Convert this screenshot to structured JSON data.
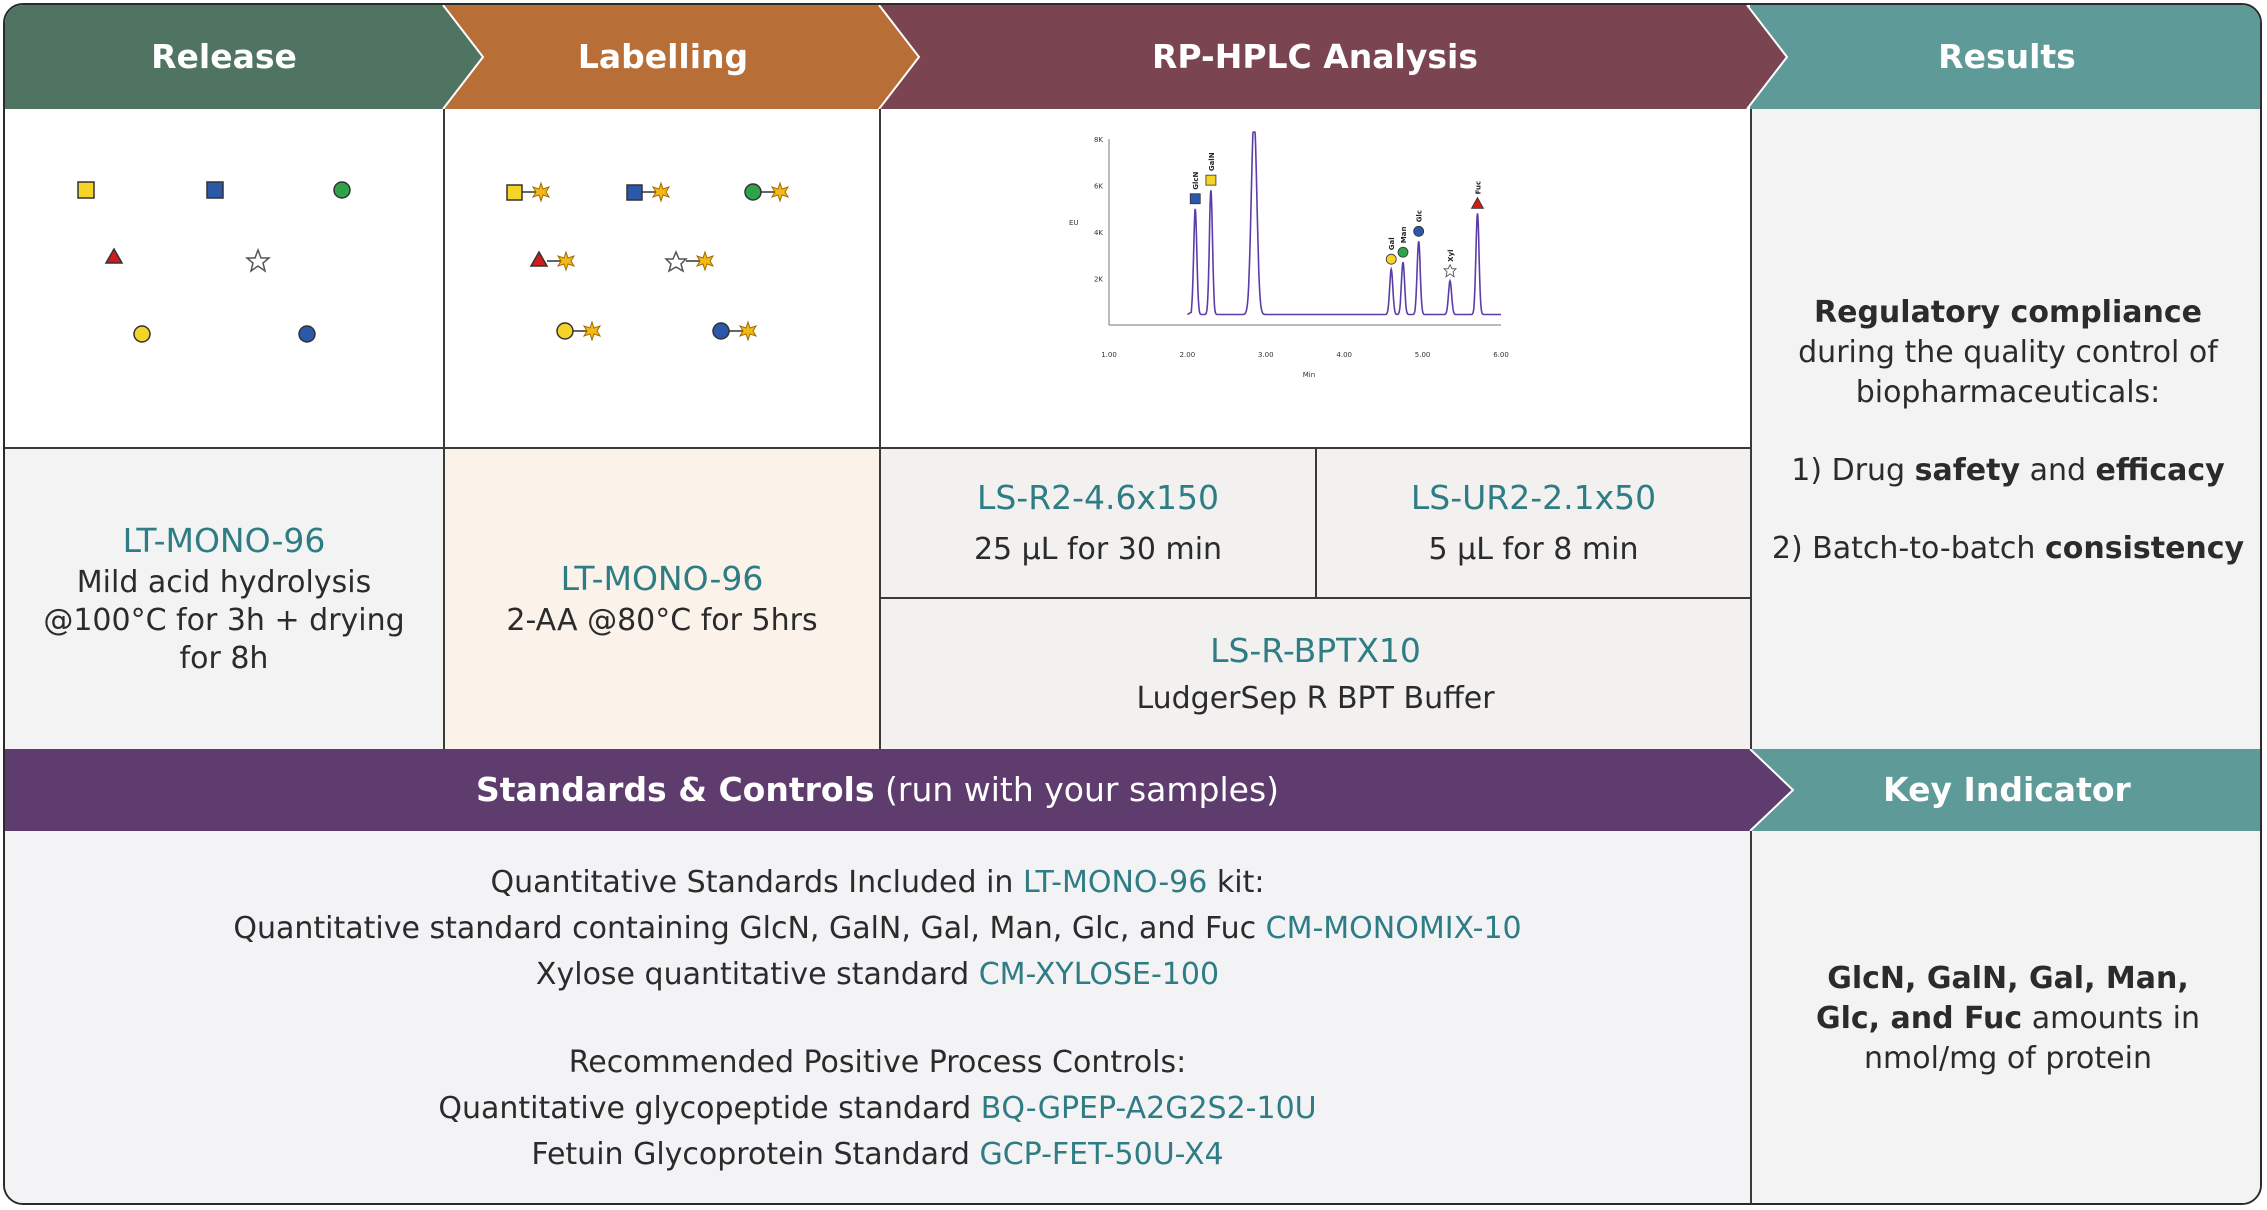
{
  "colors": {
    "release": "#4f7461",
    "labelling": "#b86e37",
    "analysis": "#7a4550",
    "results": "#5e9a98",
    "standards": "#5f3c6e",
    "teal_text": "#2e7d84"
  },
  "header": {
    "release": "Release",
    "labelling": "Labelling",
    "analysis": "RP-HPLC Analysis",
    "results": "Results"
  },
  "release_panel": {
    "code": "LT-MONO-96",
    "line1": "Mild acid hydrolysis",
    "line2": "@100°C for 3h + drying",
    "line3": "for 8h"
  },
  "labelling_panel": {
    "code": "LT-MONO-96",
    "line1": "2-AA @80°C for 5hrs"
  },
  "analysis_panel": {
    "col1_code": "LS-R2-4.6x150",
    "col1_desc": "25 µL for 30 min",
    "col2_code": "LS-UR2-2.1x50",
    "col2_desc": "5 µL for 8 min",
    "buffer_code": "LS-R-BPTX10",
    "buffer_desc": "LudgerSep R BPT Buffer"
  },
  "results_panel": {
    "title": "Regulatory compliance",
    "line1": "during the quality control of",
    "line2": "biopharmaceuticals:",
    "item1_prefix": "1) Drug ",
    "item1_b1": "safety",
    "item1_mid": " and ",
    "item1_b2": "efficacy",
    "item2_prefix": "2) Batch-to-batch ",
    "item2_b": "consistency"
  },
  "standards_band": {
    "title": "Standards & Controls",
    "subtitle": " (run with your samples)",
    "key_indicator": "Key Indicator"
  },
  "standards_panel": {
    "quant_heading_pre": "Quantitative Standards Included in ",
    "quant_heading_code": "LT-MONO-96",
    "quant_heading_post": " kit:",
    "quant1_text": "Quantitative standard containing GlcN, GalN, Gal, Man, Glc, and Fuc ",
    "quant1_code": "CM-MONOMIX-10",
    "quant2_text": "Xylose quantitative standard ",
    "quant2_code": "CM-XYLOSE-100",
    "ctrl_heading": "Recommended Positive Process Controls:",
    "ctrl1_text": "Quantitative glycopeptide standard ",
    "ctrl1_code": "BQ-GPEP-A2G2S2-10U",
    "ctrl2_text": "Fetuin Glycoprotein Standard ",
    "ctrl2_code": "GCP-FET-50U-X4"
  },
  "key_indicator_panel": {
    "line1_bold": "GlcN, GalN, Gal, Man,",
    "line2_bold": "Glc, and Fuc",
    "line2_rest": " amounts in",
    "line3": "nmol/mg of protein"
  },
  "chart_data": {
    "type": "line",
    "xlabel": "Min",
    "ylabel": "EU",
    "x_ticks": [
      "1.00",
      "2.00",
      "3.00",
      "4.00",
      "5.00",
      "6.00"
    ],
    "y_ticks": [
      "2K",
      "4K",
      "6K",
      "8K"
    ],
    "peaks": [
      {
        "x": 2.1,
        "y": 5.0,
        "label": "GlcN"
      },
      {
        "x": 2.3,
        "y": 5.8,
        "label": "GalN"
      },
      {
        "x": 2.85,
        "y": 9.0,
        "label": ""
      },
      {
        "x": 4.6,
        "y": 2.4,
        "label": "Gal"
      },
      {
        "x": 4.75,
        "y": 2.7,
        "label": "Man"
      },
      {
        "x": 4.95,
        "y": 3.6,
        "label": "Glc"
      },
      {
        "x": 5.35,
        "y": 1.9,
        "label": "Xyl"
      },
      {
        "x": 5.7,
        "y": 4.8,
        "label": "Fuc"
      }
    ]
  }
}
